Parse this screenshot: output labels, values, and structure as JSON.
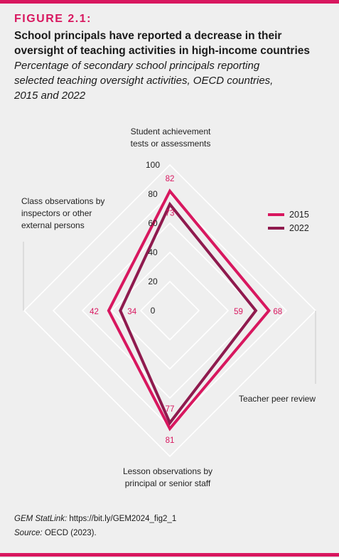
{
  "header": {
    "figure_label": "FIGURE 2.1:",
    "title_line1": "School principals have reported a decrease in their",
    "title_line2": "oversight of teaching activities in high-income countries",
    "subtitle_line1": "Percentage of secondary school principals reporting",
    "subtitle_line2": "selected teaching oversight activities, OECD countries,",
    "subtitle_line3": "2015 and 2022"
  },
  "chart_data": {
    "type": "radar",
    "axes": [
      {
        "key": "top",
        "label_lines": [
          "Student achievement",
          "tests or assessments"
        ]
      },
      {
        "key": "right",
        "label_lines": [
          "Teacher peer review"
        ]
      },
      {
        "key": "bottom",
        "label_lines": [
          "Lesson observations by",
          "principal or senior staff"
        ]
      },
      {
        "key": "left",
        "label_lines": [
          "Class observations by",
          "inspectors or other",
          "external persons"
        ]
      }
    ],
    "ticks": [
      "0",
      "20",
      "40",
      "60",
      "80",
      "100"
    ],
    "range": [
      0,
      100
    ],
    "series": [
      {
        "name": "2015",
        "color": "#d8175f",
        "values": [
          82,
          68,
          81,
          42
        ],
        "labels": [
          "82",
          "68",
          "81",
          "42"
        ]
      },
      {
        "name": "2022",
        "color": "#8f1a4e",
        "values": [
          73,
          59,
          77,
          34
        ],
        "labels": [
          "73",
          "59",
          "77",
          "34"
        ]
      }
    ],
    "legend_position": "right"
  },
  "footer": {
    "statlink_label": "GEM StatLink:",
    "statlink_value": "https://bit.ly/GEM2024_fig2_1",
    "source_label": "Source:",
    "source_value": "OECD (2023)."
  },
  "colors": {
    "accent": "#d8175f",
    "series_2022": "#8f1a4e",
    "grid": "#ffffff",
    "background": "#efefef"
  }
}
